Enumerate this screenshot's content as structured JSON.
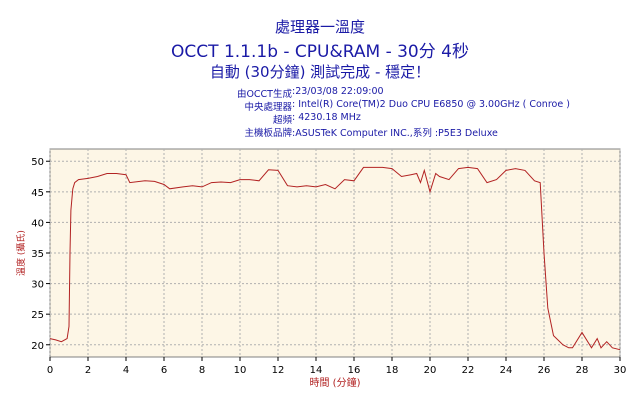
{
  "header": {
    "title": "處理器一溫度",
    "subtitle": "OCCT 1.1.1b - CPU&RAM - 30分 4秒",
    "status": "自動 (30分鐘) 測試完成 - 穩定！",
    "info": [
      {
        "key": "由OCCT生成",
        "value": ":23/03/08 22:09:00"
      },
      {
        "key": "中央處理器",
        "value": ": Intel(R) Core(TM)2 Duo CPU E6850 @ 3.00GHz ( Conroe )"
      },
      {
        "key": "超頻",
        "value": ": 4230.18 MHz"
      },
      {
        "key": "主機板品牌",
        "value": ":ASUSTeK Computer INC.,系列 :P5E3 Deluxe"
      }
    ]
  },
  "colors": {
    "line": "#b22222",
    "plot_bg": "#fdf6e6",
    "text": "#1a1aa6",
    "axis_label": "#b22222"
  },
  "chart_data": {
    "type": "line",
    "title": "處理器一溫度",
    "xlabel": "時間 (分鐘)",
    "ylabel": "溫度 (攝氏)",
    "xlim": [
      0,
      30
    ],
    "ylim": [
      18,
      52
    ],
    "x_ticks": [
      0,
      2,
      4,
      6,
      8,
      10,
      12,
      14,
      16,
      18,
      20,
      22,
      24,
      26,
      28,
      30
    ],
    "y_ticks": [
      20,
      25,
      30,
      35,
      40,
      45,
      50
    ],
    "grid": true,
    "series": [
      {
        "values_x": [
          0,
          0.3,
          0.6,
          0.9,
          1.0,
          1.05,
          1.1,
          1.2,
          1.3,
          1.5,
          2.0,
          2.5,
          3.0,
          3.5,
          4.0,
          4.2,
          5.0,
          5.5,
          6.0,
          6.3,
          7.0,
          7.5,
          8.0,
          8.5,
          9.0,
          9.5,
          10.0,
          10.5,
          11.0,
          11.5,
          12.0,
          12.5,
          13.0,
          13.5,
          14.0,
          14.5,
          15.0,
          15.5,
          16.0,
          16.5,
          17.0,
          17.5,
          18.0,
          18.5,
          19.0,
          19.3,
          19.5,
          19.7,
          20.0,
          20.3,
          20.5,
          21.0,
          21.5,
          22.0,
          22.5,
          23.0,
          23.5,
          24.0,
          24.5,
          25.0,
          25.5,
          25.8,
          26.0,
          26.2,
          26.5,
          27.0,
          27.3,
          27.5,
          28.0,
          28.5,
          28.8,
          29.0,
          29.3,
          29.6,
          30.0
        ],
        "values_y": [
          21,
          20.8,
          20.5,
          21,
          23,
          35,
          42,
          45.5,
          46.5,
          47,
          47.2,
          47.5,
          48,
          48,
          47.8,
          46.5,
          46.8,
          46.7,
          46.2,
          45.5,
          45.8,
          46,
          45.8,
          46.5,
          46.6,
          46.5,
          47,
          47,
          46.8,
          48.6,
          48.5,
          46,
          45.8,
          46,
          45.8,
          46.2,
          45.5,
          47,
          46.8,
          49,
          49,
          49,
          48.8,
          47.5,
          47.8,
          48,
          46.5,
          48.5,
          45,
          48,
          47.5,
          47,
          48.8,
          49,
          48.8,
          46.5,
          47,
          48.5,
          48.8,
          48.5,
          46.8,
          46.5,
          35,
          26,
          21.5,
          20,
          19.5,
          19.5,
          22,
          19.5,
          21,
          19.5,
          20.5,
          19.5,
          19.2
        ]
      }
    ]
  }
}
